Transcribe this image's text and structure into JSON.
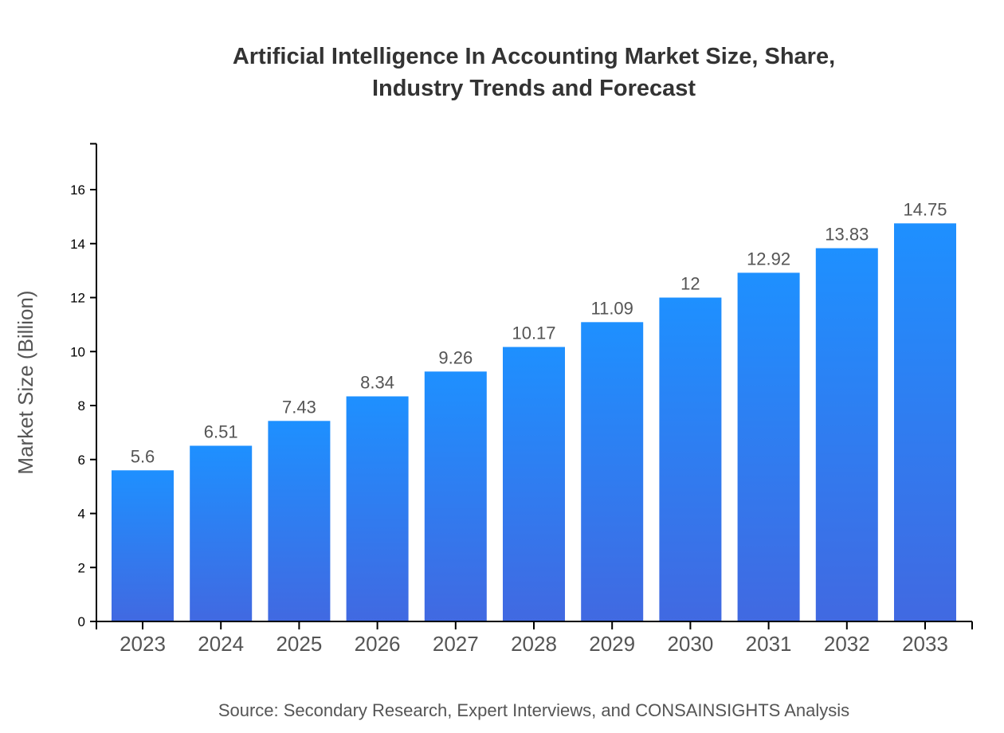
{
  "chart_data": {
    "type": "bar",
    "title_lines": [
      "Artificial Intelligence In Accounting Market Size, Share,",
      "Industry Trends and Forecast"
    ],
    "categories": [
      "2023",
      "2024",
      "2025",
      "2026",
      "2027",
      "2028",
      "2029",
      "2030",
      "2031",
      "2032",
      "2033"
    ],
    "values": [
      5.6,
      6.51,
      7.43,
      8.34,
      9.26,
      10.17,
      11.09,
      12,
      12.92,
      13.83,
      14.75
    ],
    "value_labels": [
      "5.6",
      "6.51",
      "7.43",
      "8.34",
      "9.26",
      "10.17",
      "11.09",
      "12",
      "12.92",
      "13.83",
      "14.75"
    ],
    "xlabel": "",
    "ylabel": "Market Size (Billion)",
    "ylim": [
      0,
      17.7
    ],
    "yticks": [
      "0",
      "2",
      "4",
      "6",
      "8",
      "10",
      "12",
      "14",
      "16"
    ],
    "grid": false,
    "bar_gradient": {
      "top": "#1E90FF",
      "bottom": "#4169E1"
    },
    "source": "Source: Secondary Research, Expert Interviews, and CONSAINSIGHTS Analysis"
  }
}
